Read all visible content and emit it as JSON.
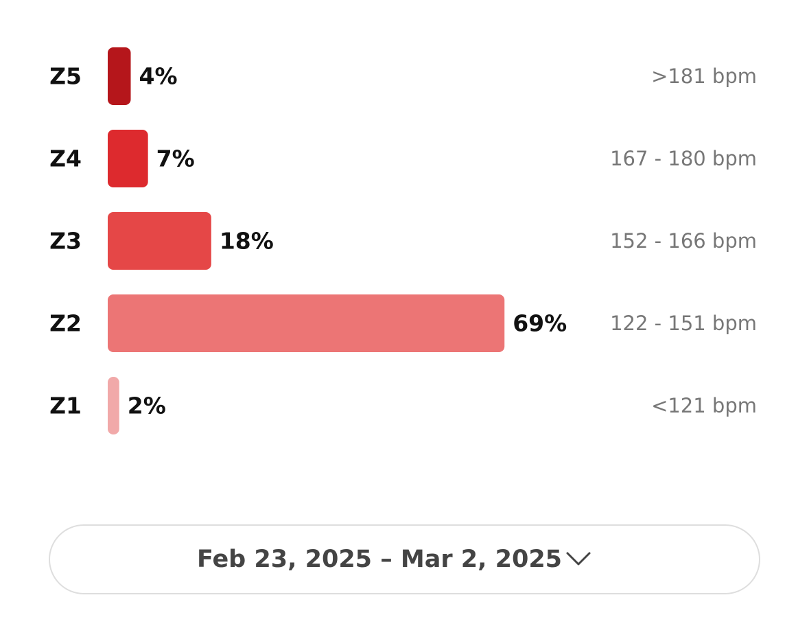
{
  "chart_data": {
    "type": "bar",
    "orientation": "horizontal",
    "categories": [
      "Z5",
      "Z4",
      "Z3",
      "Z2",
      "Z1"
    ],
    "values": [
      4,
      7,
      18,
      69,
      2
    ],
    "value_labels": [
      "4%",
      "7%",
      "18%",
      "69%",
      "2%"
    ],
    "colors": [
      "#b5161b",
      "#dd2a2e",
      "#e54747",
      "#ec7575",
      "#f1a9a9"
    ],
    "zone_ranges": [
      ">181 bpm",
      "167 - 180 bpm",
      "152 - 166 bpm",
      "122 - 151 bpm",
      "<121 bpm"
    ]
  },
  "date_selector": {
    "label": "Feb 23, 2025 – Mar 2, 2025"
  }
}
